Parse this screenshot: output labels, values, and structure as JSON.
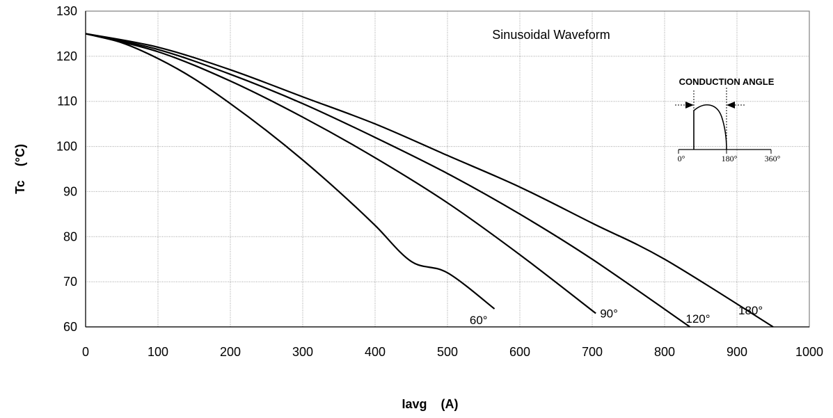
{
  "chart_data": {
    "type": "line",
    "title": "",
    "xlabel": "Iavg    (A)",
    "ylabel": "Tc    (°C)",
    "xlim": [
      0,
      1000
    ],
    "ylim": [
      60,
      130
    ],
    "x_ticks": [
      "0",
      "100",
      "200",
      "300",
      "400",
      "500",
      "600",
      "700",
      "800",
      "900",
      "1000"
    ],
    "y_ticks": [
      "60",
      "70",
      "80",
      "90",
      "100",
      "110",
      "120",
      "130"
    ],
    "grid": true,
    "annotation": "Sinusoidal Waveform",
    "series": [
      {
        "name": "60°",
        "x": [
          0,
          50,
          100,
          150,
          200,
          250,
          300,
          350,
          400,
          450,
          500,
          565
        ],
        "y": [
          125,
          123,
          119.5,
          115,
          109.5,
          103.5,
          97,
          90,
          82.5,
          74.5,
          72,
          64
        ]
      },
      {
        "name": "90°",
        "x": [
          0,
          100,
          200,
          300,
          400,
          500,
          600,
          705
        ],
        "y": [
          125,
          121,
          114.5,
          106.5,
          97.5,
          87.5,
          76,
          63
        ]
      },
      {
        "name": "120°",
        "x": [
          0,
          100,
          200,
          300,
          400,
          500,
          600,
          700,
          835
        ],
        "y": [
          125,
          121.5,
          116,
          109.5,
          102,
          94,
          85,
          75,
          60
        ]
      },
      {
        "name": "180°",
        "x": [
          0,
          100,
          200,
          300,
          400,
          500,
          600,
          700,
          800,
          950
        ],
        "y": [
          125,
          122,
          117,
          111,
          105,
          98,
          91,
          83,
          75,
          60
        ]
      }
    ],
    "inset": {
      "title": "CONDUCTION ANGLE",
      "ticks": [
        "0°",
        "180°",
        "360°"
      ]
    }
  }
}
